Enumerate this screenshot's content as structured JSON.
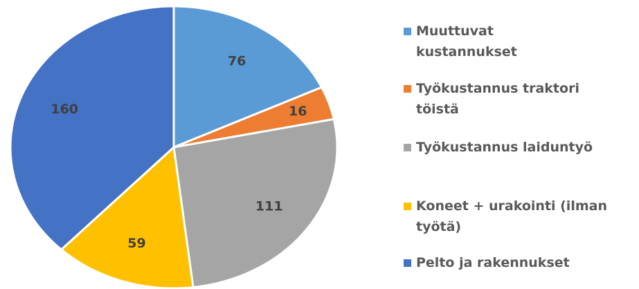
{
  "chart_data": {
    "type": "pie",
    "categories": [
      "Muuttuvat kustannukset",
      "Työkustannus traktori töistä",
      "Työkustannus laiduntyö",
      "Koneet + urakointi (ilman työtä)",
      "Pelto ja rakennukset"
    ],
    "values": [
      76,
      16,
      111,
      59,
      160
    ],
    "colors": [
      "#5b9bd5",
      "#ed7d31",
      "#a5a5a5",
      "#ffc000",
      "#4472c4"
    ],
    "legend": "right"
  }
}
